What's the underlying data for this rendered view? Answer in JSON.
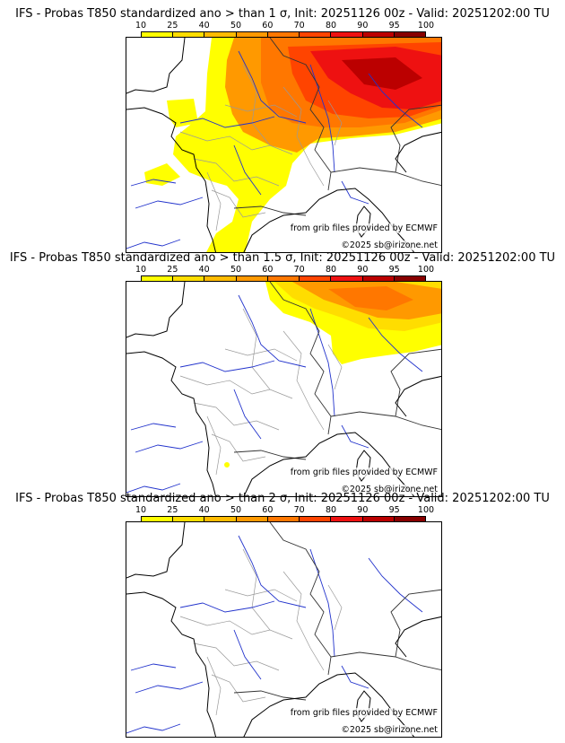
{
  "colorbar": {
    "labels": [
      "10",
      "25",
      "40",
      "50",
      "60",
      "70",
      "80",
      "90",
      "95",
      "100"
    ],
    "colors": [
      "#ffff00",
      "#ffdd00",
      "#ffbb00",
      "#ff9900",
      "#ff7700",
      "#ff4400",
      "#ee1111",
      "#bb0000",
      "#880000"
    ]
  },
  "panels": [
    {
      "title": "IFS - Probas T850  standardized ano > than 1 σ, Init: 20251126 00z - Valid: 20251202:00 TU",
      "level": "high",
      "source_note": "from grib files provided by ECMWF",
      "copyright": "©2025 sb@irizone.net"
    },
    {
      "title": "IFS - Probas T850  standardized ano > than 1.5 σ, Init: 20251126 00z - Valid: 20251202:00 TU",
      "level": "mid",
      "source_note": "from grib files provided by ECMWF",
      "copyright": "©2025 sb@irizone.net"
    },
    {
      "title": "IFS - Probas T850  standardized ano > than 2 σ, Init: 20251126 00z - Valid: 20251202:00 TU",
      "level": "none",
      "source_note": "from grib files provided by ECMWF",
      "copyright": "©2025 sb@irizone.net"
    }
  ],
  "map_colors": {
    "coast": "#000000",
    "rivers": "#2233cc",
    "regions": "#999999"
  }
}
